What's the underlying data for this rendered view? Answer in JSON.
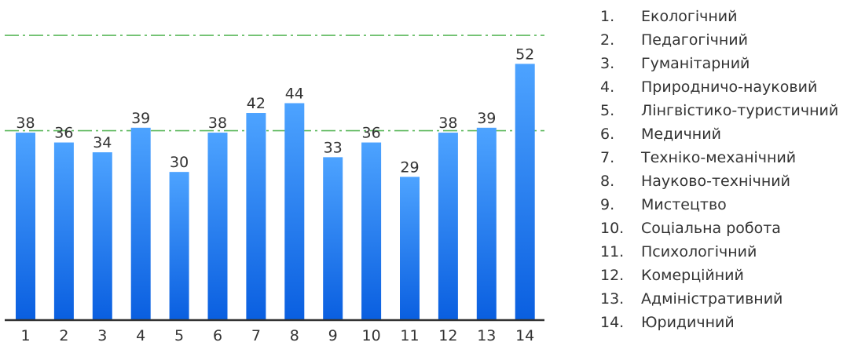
{
  "chart_data": {
    "type": "bar",
    "categories": [
      "1",
      "2",
      "3",
      "4",
      "5",
      "6",
      "7",
      "8",
      "9",
      "10",
      "11",
      "12",
      "13",
      "14"
    ],
    "values": [
      38,
      36,
      34,
      39,
      30,
      38,
      42,
      44,
      33,
      36,
      29,
      38,
      39,
      52
    ],
    "ylim": [
      0,
      65
    ],
    "reference_lines": [
      38.4,
      57.8
    ],
    "grid": false,
    "legend_position": "right",
    "colors": {
      "bar_top": "#4da3ff",
      "bar_bottom": "#0a5fe0",
      "reference_line": "#5cb85c",
      "baseline": "#333333",
      "text": "#333333"
    },
    "legend": [
      {
        "num": "1.",
        "label": "Екологічний"
      },
      {
        "num": "2.",
        "label": "Педагогічний"
      },
      {
        "num": "3.",
        "label": "Гуманітарний"
      },
      {
        "num": "4.",
        "label": "Природничо-науковий"
      },
      {
        "num": "5.",
        "label": "Лінгвістико-туристичний"
      },
      {
        "num": "6.",
        "label": "Медичний"
      },
      {
        "num": "7.",
        "label": "Техніко-механічний"
      },
      {
        "num": "8.",
        "label": "Науково-технічний"
      },
      {
        "num": "9.",
        "label": "Мистецтво"
      },
      {
        "num": "10.",
        "label": "Соціальна робота"
      },
      {
        "num": "11.",
        "label": "Психологічний"
      },
      {
        "num": "12.",
        "label": "Комерційний"
      },
      {
        "num": "13.",
        "label": "Адміністративний"
      },
      {
        "num": "14.",
        "label": "Юридичний"
      }
    ]
  }
}
